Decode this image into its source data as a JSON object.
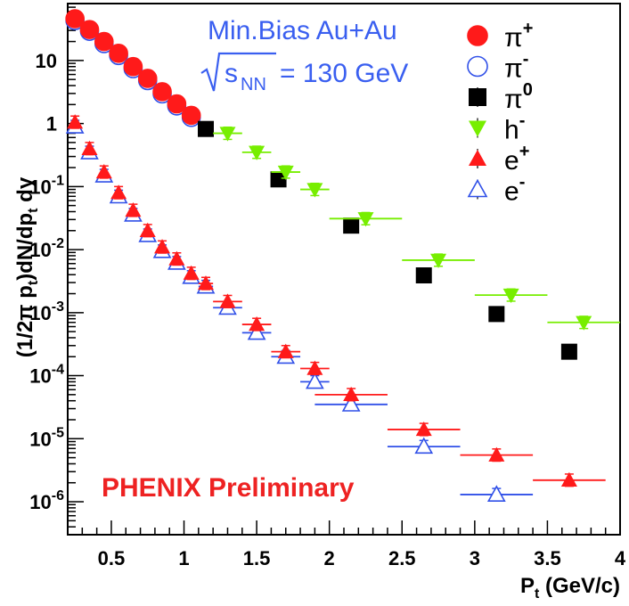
{
  "chart_data": {
    "type": "scatter",
    "title": "",
    "xlabel": "P_t (GeV/c)",
    "ylabel": "(1/2π p_t)dN/dp_t dy",
    "xlim": [
      0.2,
      4.0
    ],
    "ylim": [
      3e-07,
      80
    ],
    "y_log": true,
    "grid": false,
    "legend_position": "top-right",
    "x_ticks": [
      "0.5",
      "1",
      "1.5",
      "2",
      "2.5",
      "3",
      "3.5",
      "4"
    ],
    "y_ticks": [
      "10^-6",
      "10^-5",
      "10^-4",
      "10^-3",
      "10^-2",
      "10^-1",
      "1",
      "10"
    ],
    "annotations": {
      "system": "Min.Bias Au+Au",
      "energy_sqrt": "s",
      "energy_sub": "NN",
      "energy_value": "= 130 GeV",
      "experiment": "PHENIX Preliminary"
    },
    "colors": {
      "pi_plus": "#ff1a1a",
      "pi_minus": "#3050e8",
      "pi_zero": "#000000",
      "h_minus": "#77ee00",
      "e_plus": "#ff1a1a",
      "e_minus": "#3050e8"
    },
    "series": [
      {
        "name": "π+",
        "name_base": "π",
        "name_sup": "+",
        "marker": "filled-circle",
        "color": "#ff1a1a",
        "points": [
          [
            0.25,
            46
          ],
          [
            0.35,
            31
          ],
          [
            0.45,
            20
          ],
          [
            0.55,
            13
          ],
          [
            0.65,
            8.0
          ],
          [
            0.75,
            5.2
          ],
          [
            0.85,
            3.2
          ],
          [
            0.95,
            2.05
          ],
          [
            1.05,
            1.35
          ]
        ]
      },
      {
        "name": "π-",
        "name_base": "π",
        "name_sup": "-",
        "marker": "open-circle",
        "color": "#3050e8",
        "points": [
          [
            0.25,
            43
          ],
          [
            0.35,
            29
          ],
          [
            0.45,
            18.5
          ],
          [
            0.55,
            12
          ],
          [
            0.65,
            7.4
          ],
          [
            0.75,
            4.8
          ],
          [
            0.85,
            2.95
          ],
          [
            0.95,
            1.9
          ],
          [
            1.05,
            1.25
          ]
        ]
      },
      {
        "name": "π0",
        "name_base": "π",
        "name_sup": "0",
        "marker": "filled-square",
        "color": "#000000",
        "points": [
          [
            1.15,
            0.82,
            0
          ],
          [
            1.65,
            0.13,
            0
          ],
          [
            2.15,
            0.024,
            0
          ],
          [
            2.65,
            0.0039,
            0
          ],
          [
            3.15,
            0.00095,
            0
          ],
          [
            3.65,
            0.00024,
            0
          ]
        ]
      },
      {
        "name": "h-",
        "name_base": "h",
        "name_sup": "-",
        "marker": "filled-triangle-down",
        "color": "#77ee00",
        "points": [
          [
            1.3,
            0.7,
            0.1
          ],
          [
            1.5,
            0.35,
            0.1
          ],
          [
            1.7,
            0.17,
            0.1
          ],
          [
            1.9,
            0.09,
            0.1
          ],
          [
            2.25,
            0.031,
            0.25
          ],
          [
            2.75,
            0.0068,
            0.25
          ],
          [
            3.25,
            0.0019,
            0.25
          ],
          [
            3.75,
            0.0007,
            0.25
          ]
        ]
      },
      {
        "name": "e+",
        "name_base": "e",
        "name_sup": "+",
        "marker": "filled-triangle-up",
        "color": "#ff1a1a",
        "points": [
          [
            0.25,
            1.05,
            0
          ],
          [
            0.35,
            0.4,
            0
          ],
          [
            0.45,
            0.17,
            0
          ],
          [
            0.55,
            0.08,
            0
          ],
          [
            0.65,
            0.042,
            0
          ],
          [
            0.75,
            0.02,
            0
          ],
          [
            0.85,
            0.011,
            0
          ],
          [
            0.95,
            0.0071,
            0
          ],
          [
            1.05,
            0.0042,
            0
          ],
          [
            1.15,
            0.0029,
            0.05
          ],
          [
            1.3,
            0.0015,
            0.1
          ],
          [
            1.5,
            0.00065,
            0.1
          ],
          [
            1.7,
            0.00024,
            0.1
          ],
          [
            1.9,
            0.00013,
            0.1
          ],
          [
            2.15,
            5e-05,
            0.25
          ],
          [
            2.65,
            1.4e-05,
            0.25
          ],
          [
            3.15,
            5.5e-06,
            0.25
          ],
          [
            3.65,
            2.2e-06,
            0.25
          ]
        ]
      },
      {
        "name": "e-",
        "name_base": "e",
        "name_sup": "-",
        "marker": "open-triangle-up",
        "color": "#3050e8",
        "points": [
          [
            0.25,
            0.9,
            0
          ],
          [
            0.35,
            0.35,
            0
          ],
          [
            0.45,
            0.15,
            0
          ],
          [
            0.55,
            0.07,
            0
          ],
          [
            0.65,
            0.036,
            0
          ],
          [
            0.75,
            0.017,
            0
          ],
          [
            0.85,
            0.0095,
            0
          ],
          [
            0.95,
            0.0062,
            0
          ],
          [
            1.05,
            0.0037,
            0
          ],
          [
            1.15,
            0.0026,
            0.05
          ],
          [
            1.3,
            0.0012,
            0.1
          ],
          [
            1.5,
            0.00048,
            0.1
          ],
          [
            1.7,
            0.0002,
            0.1
          ],
          [
            1.9,
            8e-05,
            0.1
          ],
          [
            2.15,
            3.5e-05,
            0.25
          ],
          [
            2.65,
            7.5e-06,
            0.25
          ],
          [
            3.15,
            1.3e-06,
            0.25
          ]
        ]
      }
    ]
  }
}
